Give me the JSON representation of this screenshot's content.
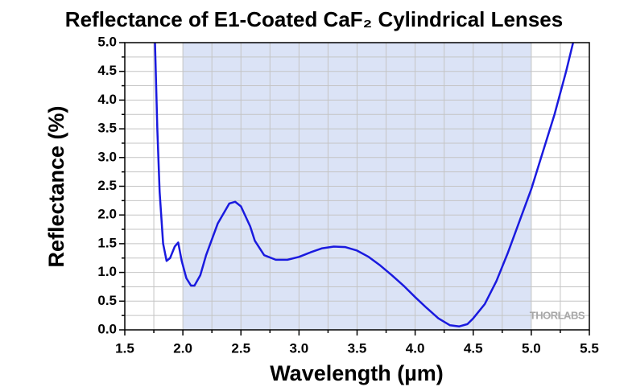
{
  "chart_data": {
    "type": "line",
    "title": "Reflectance of E1-Coated CaF₂ Cylindrical Lenses",
    "x_label": "Wavelength (µm)",
    "y_label": "Reflectance (%)",
    "annotation": "THORLABS",
    "shaded_range": [
      2.0,
      5.0
    ],
    "shaded_color": "#dbe3f6",
    "grid": true,
    "xlim": [
      1.5,
      5.5
    ],
    "ylim": [
      0,
      5
    ],
    "xticks": [
      1.5,
      {
        "value": 2,
        "label": "2.0"
      },
      2.5,
      {
        "value": 3,
        "label": "3.0"
      },
      3.5,
      {
        "value": 4,
        "label": "4.0"
      },
      4.5,
      {
        "value": 5,
        "label": "5.0"
      },
      5.5
    ],
    "yticks": [
      {
        "value": 0,
        "label": "0.0"
      },
      0.5,
      {
        "value": 1,
        "label": "1.0"
      },
      1.5,
      {
        "value": 2,
        "label": "2.0"
      },
      2.5,
      {
        "value": 3,
        "label": "3.0"
      },
      3.5,
      {
        "value": 4,
        "label": "4.0"
      },
      4.5,
      {
        "value": 5,
        "label": "5.0"
      }
    ],
    "xminor": [
      1.75,
      2.25,
      2.75,
      3.25,
      3.75,
      4.25,
      4.75,
      5.25
    ],
    "yminor": [
      0.25,
      0.75,
      1.25,
      1.75,
      2.25,
      2.75,
      3.25,
      3.75,
      4.25,
      4.75
    ],
    "series": [
      {
        "name": "Reflectance",
        "color": "#1a1adf",
        "x": [
          1.76,
          1.78,
          1.8,
          1.83,
          1.86,
          1.89,
          1.93,
          1.96,
          1.99,
          2.03,
          2.07,
          2.1,
          2.15,
          2.2,
          2.3,
          2.4,
          2.45,
          2.5,
          2.58,
          2.62,
          2.7,
          2.8,
          2.9,
          3.0,
          3.1,
          3.2,
          3.3,
          3.4,
          3.5,
          3.6,
          3.7,
          3.8,
          3.9,
          4.0,
          4.1,
          4.2,
          4.3,
          4.38,
          4.45,
          4.5,
          4.6,
          4.7,
          4.8,
          4.9,
          5.0,
          5.1,
          5.2,
          5.3,
          5.36
        ],
        "values": [
          5.0,
          3.5,
          2.4,
          1.5,
          1.2,
          1.25,
          1.45,
          1.52,
          1.2,
          0.9,
          0.77,
          0.77,
          0.95,
          1.3,
          1.85,
          2.2,
          2.23,
          2.15,
          1.8,
          1.55,
          1.3,
          1.22,
          1.22,
          1.27,
          1.35,
          1.42,
          1.45,
          1.44,
          1.38,
          1.27,
          1.12,
          0.95,
          0.77,
          0.57,
          0.38,
          0.2,
          0.08,
          0.06,
          0.1,
          0.2,
          0.45,
          0.85,
          1.35,
          1.9,
          2.45,
          3.1,
          3.75,
          4.5,
          5.0
        ]
      }
    ]
  }
}
